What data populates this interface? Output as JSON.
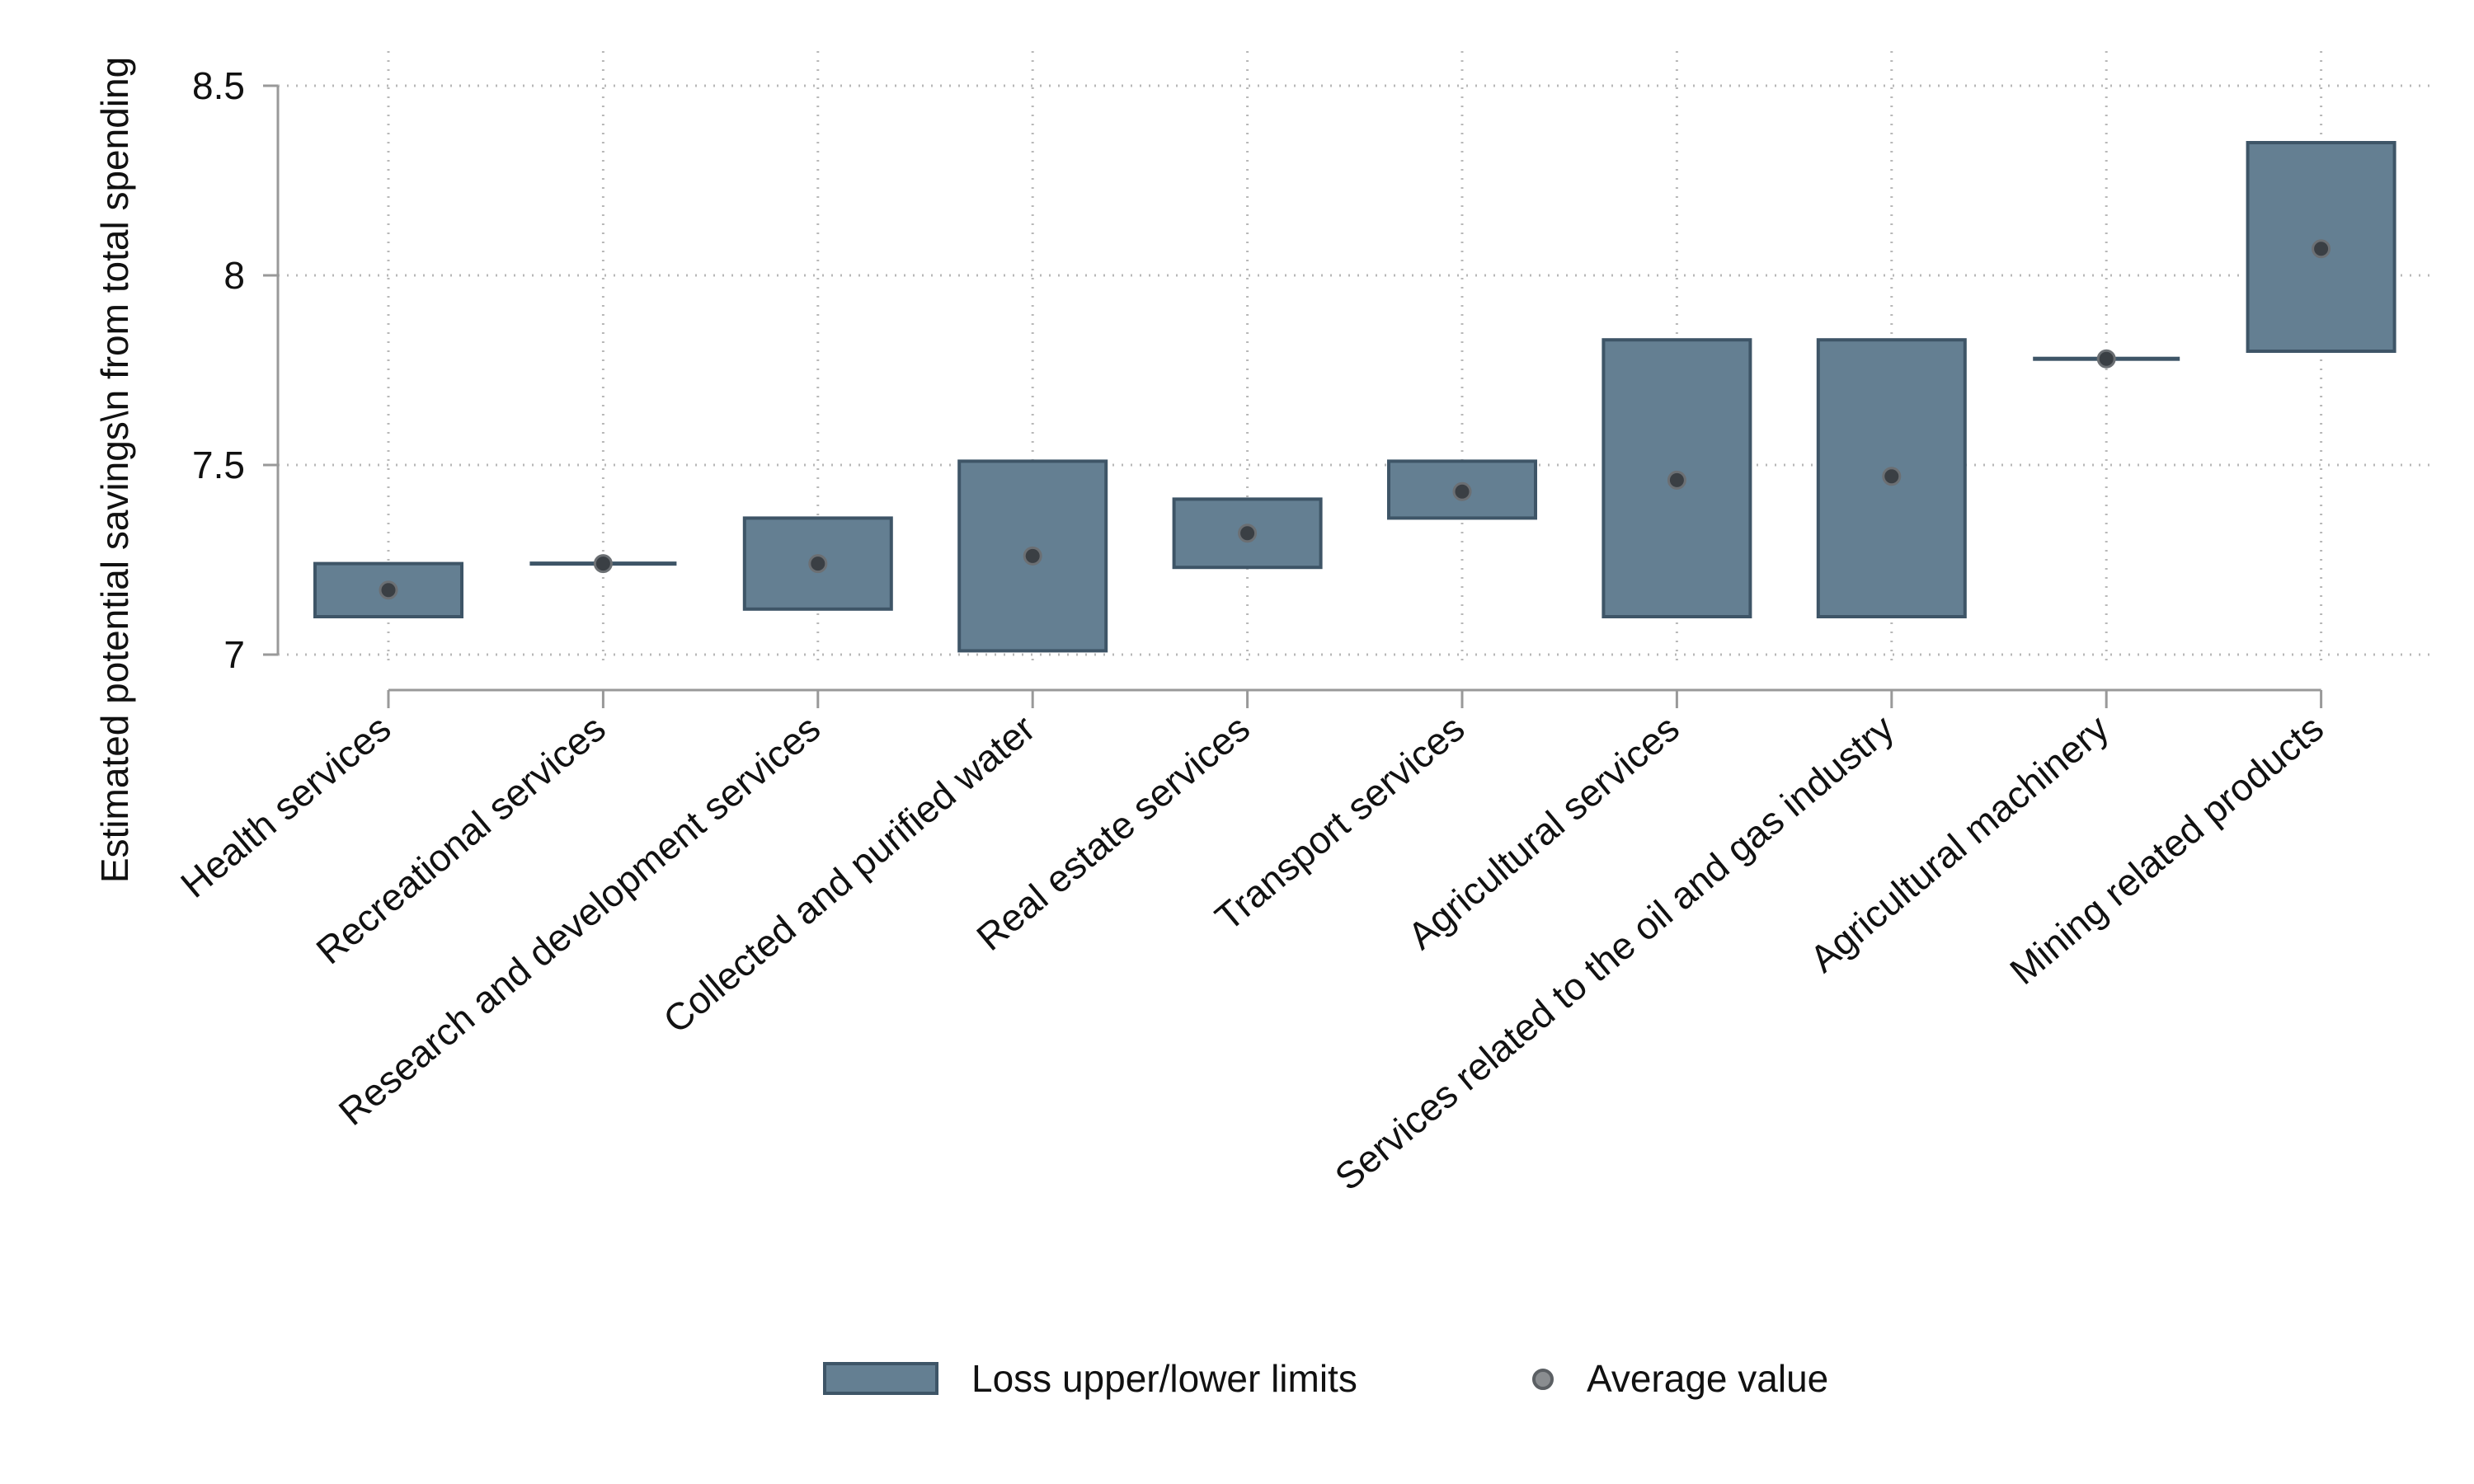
{
  "chart_data": {
    "type": "bar",
    "title": "",
    "xlabel": "",
    "ylabel": "Estimated potential savings\\n from total spending",
    "ylim": [
      7,
      8.5
    ],
    "yticks": [
      7,
      7.5,
      8,
      8.5
    ],
    "ytick_labels": [
      "7",
      "7.5",
      "8",
      "8.5"
    ],
    "grid": true,
    "categories": [
      "Health services",
      "Recreational services",
      "Research and development services",
      "Collected and purified water",
      "Real estate services",
      "Transport services",
      "Agricultural services",
      "Services related to the oil and gas industry",
      "Agricultural machinery",
      "Mining related products"
    ],
    "series": [
      {
        "name": "Loss upper/lower limits",
        "type": "range-bar",
        "lower": [
          7.1,
          7.24,
          7.12,
          7.01,
          7.23,
          7.36,
          7.1,
          7.1,
          7.78,
          7.8
        ],
        "upper": [
          7.24,
          7.24,
          7.36,
          7.51,
          7.41,
          7.51,
          7.83,
          7.83,
          7.78,
          8.35
        ]
      },
      {
        "name": "Average value",
        "type": "scatter",
        "values": [
          7.17,
          7.24,
          7.24,
          7.26,
          7.32,
          7.43,
          7.46,
          7.47,
          7.78,
          8.07
        ]
      }
    ],
    "legend": {
      "position": "bottom-center"
    },
    "colors": {
      "bar_fill": "#647f92",
      "bar_edge": "#3e5567",
      "dot": "#3a3f44",
      "grid": "#b8b8b8",
      "axis": "#999999"
    }
  }
}
